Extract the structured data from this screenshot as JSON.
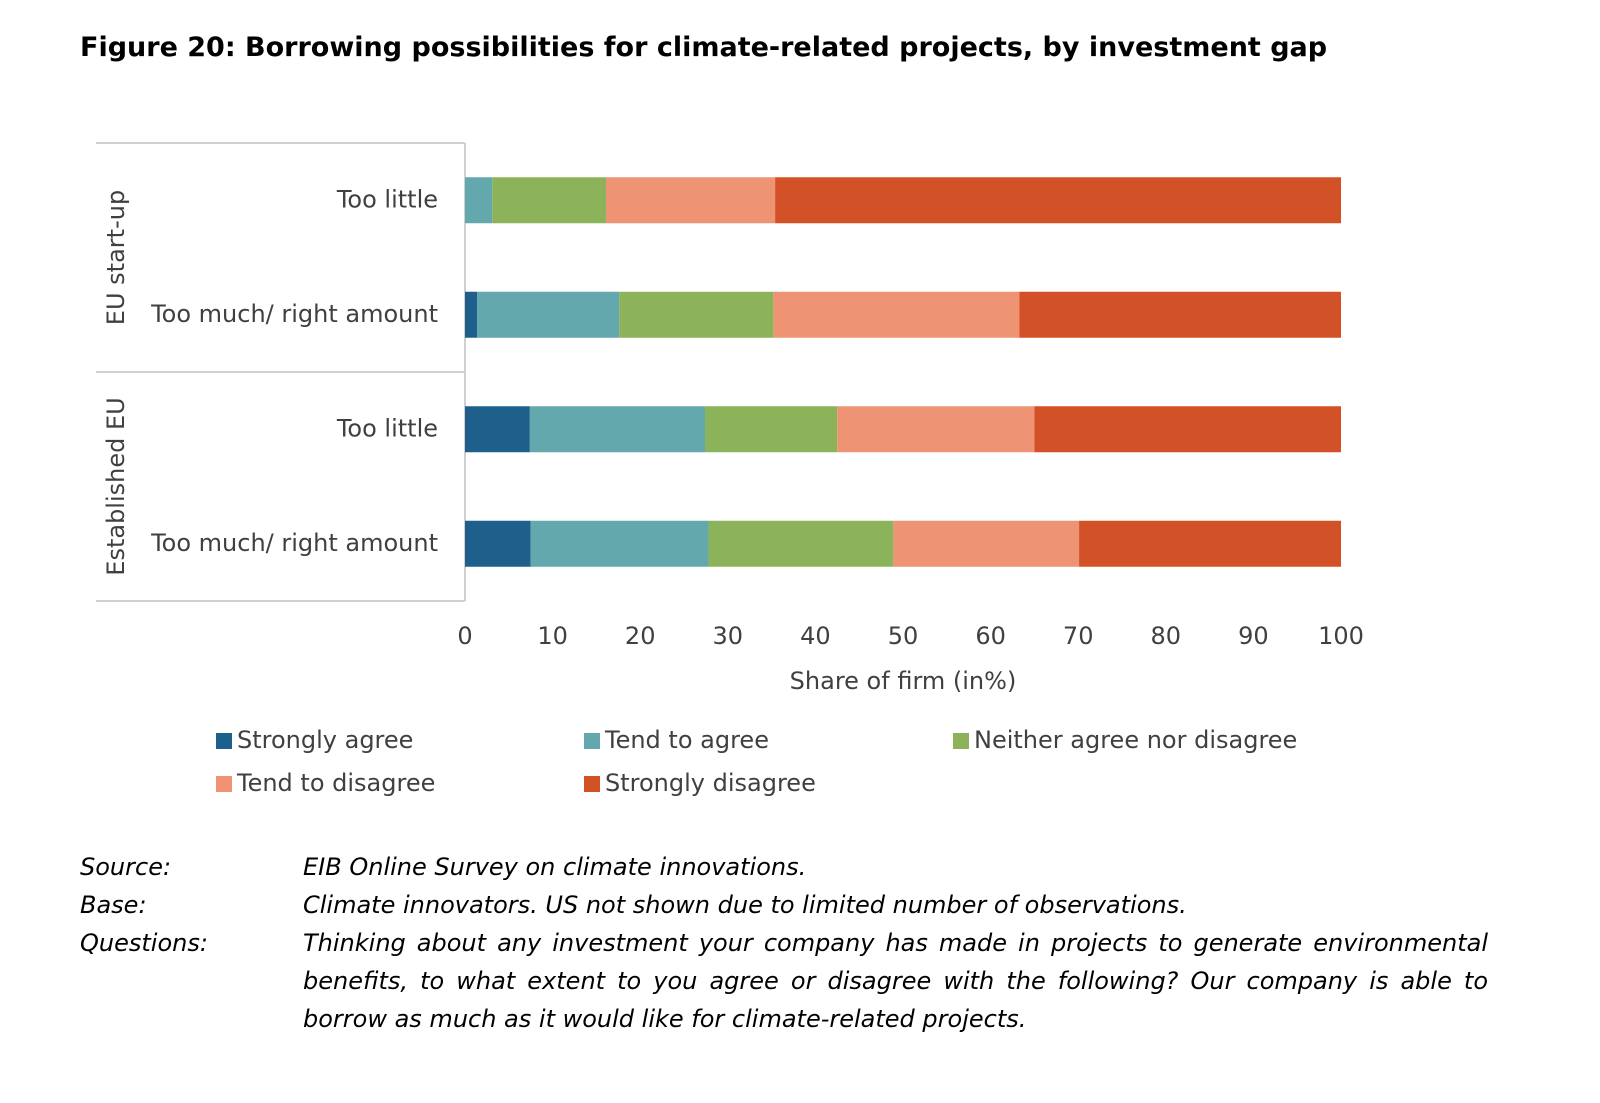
{
  "chart_data": {
    "type": "stacked-bar-horizontal",
    "title": "Figure 20: Borrowing possibilities for climate-related projects, by investment gap",
    "groups": [
      {
        "label": "EU start-up",
        "categories": [
          "Too little",
          "Too much/ right amount"
        ]
      },
      {
        "label": "Established EU",
        "categories": [
          "Too little",
          "Too much/ right amount"
        ]
      }
    ],
    "series": [
      {
        "name": "Strongly agree",
        "color": "#1f5f8b",
        "values": [
          0,
          1.4,
          7.4,
          7.5
        ]
      },
      {
        "name": "Tend to agree",
        "color": "#62a8ad",
        "values": [
          3.1,
          16.2,
          20.0,
          20.3
        ]
      },
      {
        "name": "Neither agree nor disagree",
        "color": "#8db35a",
        "values": [
          13.0,
          17.6,
          15.1,
          21.1
        ]
      },
      {
        "name": "Tend to disagree",
        "color": "#ee9373",
        "values": [
          19.3,
          28.1,
          22.5,
          21.2
        ]
      },
      {
        "name": "Strongly disagree",
        "color": "#d35127",
        "values": [
          64.6,
          36.7,
          35.0,
          29.9
        ]
      }
    ],
    "xlim": [
      0,
      100
    ],
    "xticks": [
      0,
      10,
      20,
      30,
      40,
      50,
      60,
      70,
      80,
      90,
      100
    ],
    "xlabel": "Share of firm (in%)",
    "notes": [
      {
        "label": "Source:",
        "text": "EIB Online Survey on climate innovations."
      },
      {
        "label": "Base:",
        "text": "Climate innovators. US not shown due to limited number of observations."
      },
      {
        "label": "Questions:",
        "text": "Thinking about any investment your company has made in projects to generate environmental benefits, to what extent to you agree or disagree with the following? Our company is able to borrow as much as it would like for climate-related projects."
      }
    ]
  }
}
